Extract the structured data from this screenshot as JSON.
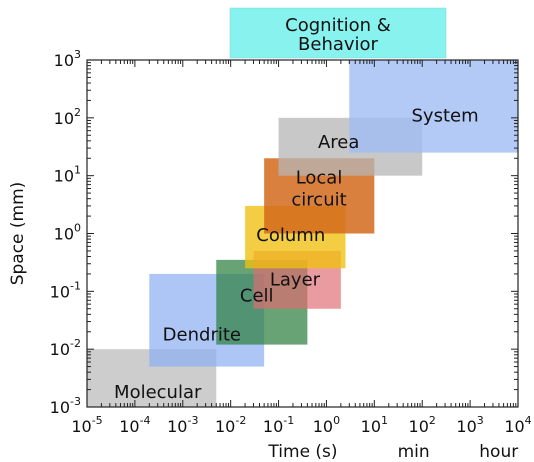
{
  "chart_data": {
    "type": "area",
    "title": "",
    "xlabel": "Time (s)",
    "ylabel": "Space (mm)",
    "x_scale": "log",
    "y_scale": "log",
    "xlim": [
      1e-05,
      10000
    ],
    "ylim": [
      0.001,
      1000
    ],
    "x_ticks": [
      {
        "value": 1e-05,
        "base": "10",
        "exp": "-5"
      },
      {
        "value": 0.0001,
        "base": "10",
        "exp": "-4"
      },
      {
        "value": 0.001,
        "base": "10",
        "exp": "-3"
      },
      {
        "value": 0.01,
        "base": "10",
        "exp": "-2"
      },
      {
        "value": 0.1,
        "base": "10",
        "exp": "-1"
      },
      {
        "value": 1,
        "base": "10",
        "exp": "0"
      },
      {
        "value": 10,
        "base": "10",
        "exp": "1"
      },
      {
        "value": 100,
        "base": "10",
        "exp": "2"
      },
      {
        "value": 1000,
        "base": "10",
        "exp": "3"
      },
      {
        "value": 10000,
        "base": "10",
        "exp": "4"
      }
    ],
    "y_ticks": [
      {
        "value": 0.001,
        "base": "10",
        "exp": "-3"
      },
      {
        "value": 0.01,
        "base": "10",
        "exp": "-2"
      },
      {
        "value": 0.1,
        "base": "10",
        "exp": "-1"
      },
      {
        "value": 1,
        "base": "10",
        "exp": "0"
      },
      {
        "value": 10,
        "base": "10",
        "exp": "1"
      },
      {
        "value": 100,
        "base": "10",
        "exp": "2"
      },
      {
        "value": 1000,
        "base": "10",
        "exp": "3"
      }
    ],
    "time_unit_labels": [
      {
        "text": "min",
        "value": 60
      },
      {
        "text": "hour",
        "value": 3600
      }
    ],
    "grid": false,
    "regions": [
      {
        "name": "Molecular",
        "x": [
          1e-05,
          0.005
        ],
        "y": [
          0.001,
          0.01
        ],
        "color": "#c4c4c4",
        "opacity": 0.85,
        "label_at": [
          0.0003,
          0.0018
        ]
      },
      {
        "name": "Dendrite",
        "x": [
          0.0002,
          0.05
        ],
        "y": [
          0.005,
          0.2
        ],
        "color": "#8fb0f2",
        "opacity": 0.72,
        "label_at": [
          0.0025,
          0.018
        ]
      },
      {
        "name": "Cell",
        "x": [
          0.005,
          0.4
        ],
        "y": [
          0.012,
          0.35
        ],
        "color": "#2e8040",
        "opacity": 0.72,
        "label_at": [
          0.035,
          0.085
        ]
      },
      {
        "name": "Layer",
        "x": [
          0.03,
          2
        ],
        "y": [
          0.05,
          0.5
        ],
        "color": "#e06c72",
        "opacity": 0.68,
        "label_at": [
          0.22,
          0.16
        ]
      },
      {
        "name": "Column",
        "x": [
          0.02,
          2.5
        ],
        "y": [
          0.25,
          3
        ],
        "color": "#f0c010",
        "opacity": 0.78,
        "label_at": [
          0.18,
          0.95
        ]
      },
      {
        "name": "Local\ncircuit",
        "x": [
          0.05,
          10
        ],
        "y": [
          1,
          20
        ],
        "color": "#d26a1c",
        "opacity": 0.85,
        "label_at": [
          0.7,
          6
        ]
      },
      {
        "name": "Area",
        "x": [
          0.1,
          100
        ],
        "y": [
          10,
          100
        ],
        "color": "#b5b5b5",
        "opacity": 0.75,
        "label_at": [
          1.8,
          38
        ]
      },
      {
        "name": "System",
        "x": [
          3,
          10000
        ],
        "y": [
          25,
          1000
        ],
        "color": "#a0bcf4",
        "opacity": 0.8,
        "label_at": [
          300,
          110
        ]
      }
    ],
    "top_box": {
      "name": "Cognition &\nBehavior",
      "color": "#88f2ee"
    }
  }
}
